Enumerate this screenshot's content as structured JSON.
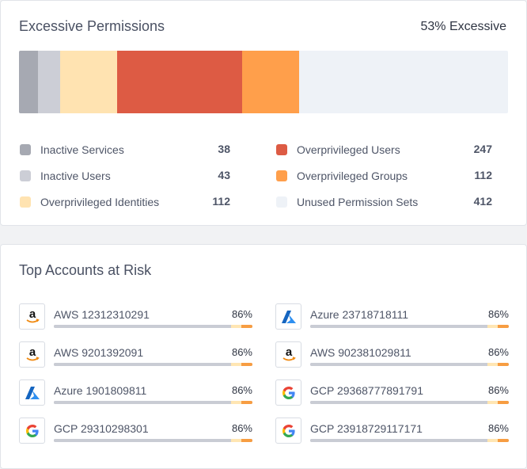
{
  "excessive_panel": {
    "title": "Excessive Permissions",
    "summary": "53% Excessive",
    "segments": [
      {
        "name": "Inactive Services",
        "value": 38,
        "color": "#a6a9b2"
      },
      {
        "name": "Inactive Users",
        "value": 43,
        "color": "#ccced6"
      },
      {
        "name": "Overprivileged Identities",
        "value": 112,
        "color": "#ffe3b1"
      },
      {
        "name": "Overprivileged Users",
        "value": 247,
        "color": "#dd5b44"
      },
      {
        "name": "Overprivileged Groups",
        "value": 112,
        "color": "#ff9f4b"
      },
      {
        "name": "Unused Permission Sets",
        "value": 412,
        "color": "#eef2f7"
      }
    ]
  },
  "risk_panel": {
    "title": "Top Accounts at Risk",
    "accounts": [
      {
        "provider": "aws",
        "icon": "amazon-icon",
        "name": "AWS 12312310291",
        "percent": "86%",
        "risk": 0.86
      },
      {
        "provider": "azure",
        "icon": "azure-icon",
        "name": "Azure 23718718111",
        "percent": "86%",
        "risk": 0.86
      },
      {
        "provider": "aws",
        "icon": "amazon-icon",
        "name": "AWS 9201392091",
        "percent": "86%",
        "risk": 0.86
      },
      {
        "provider": "aws",
        "icon": "amazon-icon",
        "name": "AWS 902381029811",
        "percent": "86%",
        "risk": 0.86
      },
      {
        "provider": "azure",
        "icon": "azure-icon",
        "name": "Azure 1901809811",
        "percent": "86%",
        "risk": 0.86
      },
      {
        "provider": "gcp",
        "icon": "google-icon",
        "name": "GCP 29368777891791",
        "percent": "86%",
        "risk": 0.86
      },
      {
        "provider": "gcp",
        "icon": "google-icon",
        "name": "GCP 29310298301",
        "percent": "86%",
        "risk": 0.86
      },
      {
        "provider": "gcp",
        "icon": "google-icon",
        "name": "GCP 23918729117171",
        "percent": "86%",
        "risk": 0.86
      }
    ]
  }
}
